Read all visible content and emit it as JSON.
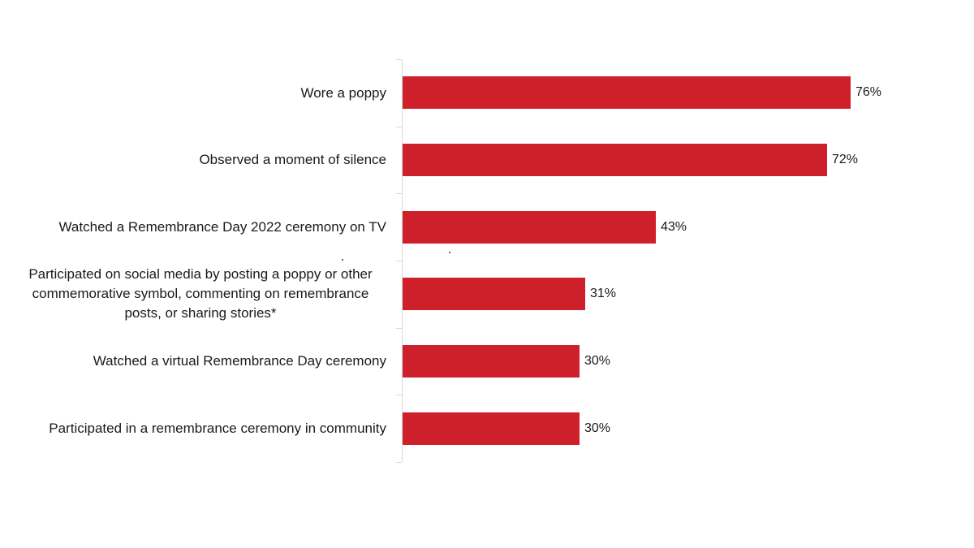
{
  "chart_data": {
    "type": "bar",
    "orientation": "horizontal",
    "title": "",
    "xlabel": "",
    "ylabel": "",
    "xlim": [
      0,
      100
    ],
    "grid": false,
    "legend": null,
    "bar_color": "#CE202A",
    "categories": [
      "Wore a poppy",
      "Observed a moment of silence",
      "Watched a Remembrance Day 2022 ceremony on TV",
      "Participated on social media by posting a poppy or other commemorative symbol, commenting on remembrance posts, or sharing stories*",
      "Watched a virtual Remembrance Day ceremony",
      "Participated in a remembrance ceremony in community"
    ],
    "values": [
      76,
      72,
      43,
      31,
      30,
      30
    ],
    "value_labels": [
      "76%",
      "72%",
      "43%",
      "31%",
      "30%",
      "30%"
    ]
  },
  "labels": {
    "cat0": "Wore a poppy",
    "cat1": "Observed a moment of silence",
    "cat2": "Watched a Remembrance Day 2022 ceremony on TV",
    "cat3_line1": "Participated on social media by posting a poppy or other",
    "cat3_line2": "commemorative symbol, commenting on remembrance",
    "cat3_line3": "posts, or sharing stories*",
    "cat4": "Watched a virtual Remembrance Day ceremony",
    "cat5": "Participated in a remembrance ceremony in community"
  }
}
